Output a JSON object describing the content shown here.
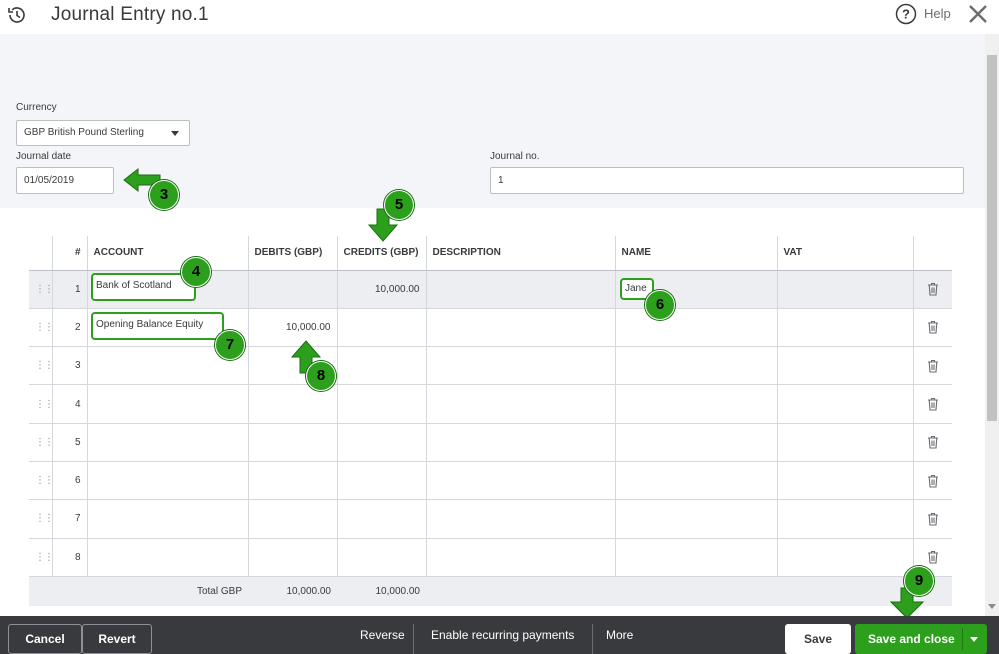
{
  "window": {
    "title": "Journal Entry no.1",
    "help_label": "Help"
  },
  "form": {
    "currency_label": "Currency",
    "currency_value": "GBP British Pound Sterling",
    "journal_date_label": "Journal date",
    "journal_date_value": "01/05/2019",
    "journal_no_label": "Journal no.",
    "journal_no_value": "1"
  },
  "table": {
    "headers": [
      "#",
      "ACCOUNT",
      "DEBITS (GBP)",
      "CREDITS (GBP)",
      "DESCRIPTION",
      "NAME",
      "VAT"
    ],
    "rows": [
      {
        "num": "1",
        "account": "Bank of Scotland",
        "debit": "",
        "credit": "10,000.00",
        "description": "",
        "name": "Jane",
        "vat": ""
      },
      {
        "num": "2",
        "account": "Opening Balance Equity",
        "debit": "10,000.00",
        "credit": "",
        "description": "",
        "name": "",
        "vat": ""
      },
      {
        "num": "3",
        "account": "",
        "debit": "",
        "credit": "",
        "description": "",
        "name": "",
        "vat": ""
      },
      {
        "num": "4",
        "account": "",
        "debit": "",
        "credit": "",
        "description": "",
        "name": "",
        "vat": ""
      },
      {
        "num": "5",
        "account": "",
        "debit": "",
        "credit": "",
        "description": "",
        "name": "",
        "vat": ""
      },
      {
        "num": "6",
        "account": "",
        "debit": "",
        "credit": "",
        "description": "",
        "name": "",
        "vat": ""
      },
      {
        "num": "7",
        "account": "",
        "debit": "",
        "credit": "",
        "description": "",
        "name": "",
        "vat": ""
      },
      {
        "num": "8",
        "account": "",
        "debit": "",
        "credit": "",
        "description": "",
        "name": "",
        "vat": ""
      }
    ],
    "total_label": "Total GBP",
    "total_debit": "10,000.00",
    "total_credit": "10,000.00"
  },
  "annotations": {
    "step3": "3",
    "step4": "4",
    "step5": "5",
    "step6": "6",
    "step7": "7",
    "step8": "8",
    "step9": "9"
  },
  "footer": {
    "cancel": "Cancel",
    "revert": "Revert",
    "reverse": "Reverse",
    "recurring": "Enable recurring payments",
    "more": "More",
    "save": "Save",
    "save_and_close": "Save and close"
  },
  "colors": {
    "brand_green": "#2ca01c",
    "footer_bg": "#393a3d",
    "header_bg": "#f4f5f8",
    "selected_row_bg": "#eceef1"
  },
  "icons": [
    "history-icon",
    "help-icon",
    "close-icon",
    "drag-handle-icon",
    "trash-icon",
    "chevron-down-icon"
  ]
}
